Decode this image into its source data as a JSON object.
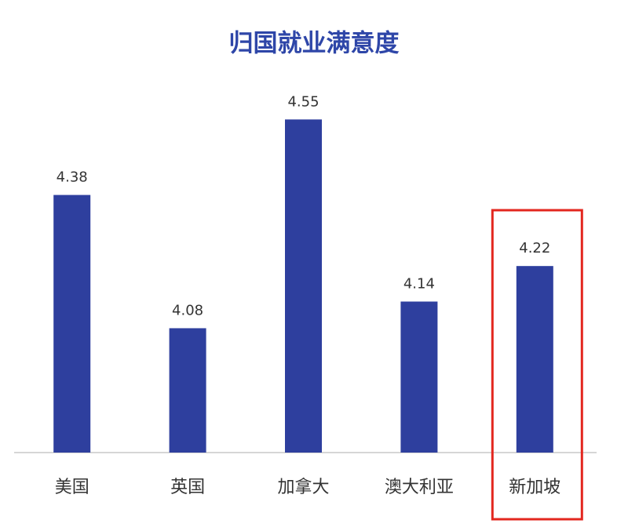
{
  "chart_data": {
    "type": "bar",
    "title": "归国就业满意度",
    "categories": [
      "美国",
      "英国",
      "加拿大",
      "澳大利亚",
      "新加坡"
    ],
    "values": [
      4.38,
      4.08,
      4.55,
      4.14,
      4.22
    ],
    "color": "#2e3f9e",
    "ylim": [
      3.8,
      4.6
    ],
    "highlight_index": 4,
    "highlight_color": "#e3271f"
  }
}
